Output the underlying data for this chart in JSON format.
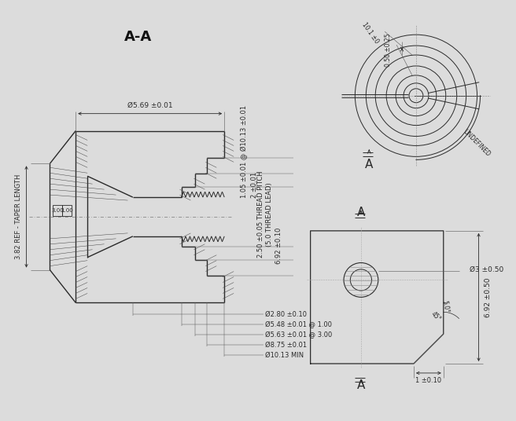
{
  "bg_color": "#dcdcdc",
  "line_color": "#2a2a2a",
  "dim_color": "#2a2a2a",
  "hatch_color": "#444444",
  "title_AA": "A-A",
  "dims_right_rotated": [
    "1.05 ±0.01 @ Ø10.13 ±0.01",
    "2 ±0.01",
    "2.50 ±0.05 THREAD PITCH\n(5.0 THREAD LEAD)",
    "6.92 ±0.10"
  ],
  "dims_bottom": [
    "Ø2.80 ±0.10",
    "Ø5.48 ±0.01 @ 1.00",
    "Ø5.63 ±0.01 @ 3.00",
    "Ø8.75 ±0.01",
    "Ø10.13 MIN"
  ],
  "dim_top": "Ø5.69 ±0.01",
  "dim_left_main": "3.82 REF - TAPER LENGTH",
  "dim_left_box1": "3.00",
  "dim_left_box2": "1.00",
  "top_view_dim1": "0.50 ±0.25",
  "top_view_dim2": "10.1 ±0",
  "top_view_undefined": "UNDEFINED",
  "front_dim_hole": "Ø3 ±0.50",
  "front_dim_height": "6.92 ±0.50",
  "front_dim_angle1": "45°",
  "front_dim_angle2": "5.0°",
  "front_dim_width": "1 ±0.10",
  "section_label": "A",
  "fs": 6.5,
  "fs_title": 13,
  "fs_label": 11
}
